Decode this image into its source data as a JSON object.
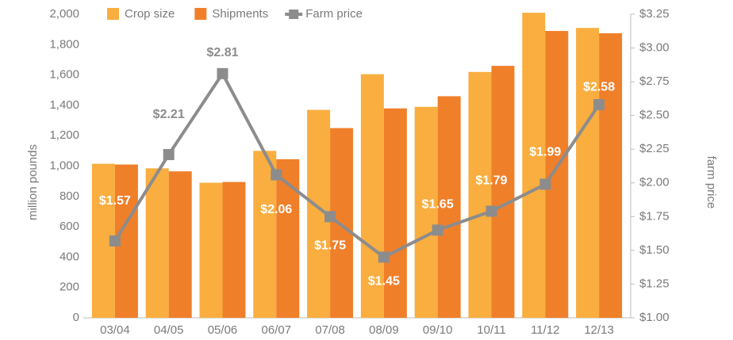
{
  "chart_data": {
    "type": "bar",
    "y_label": "million pounds",
    "y2_label": "farm price",
    "categories": [
      "03/04",
      "04/05",
      "05/06",
      "06/07",
      "07/08",
      "08/09",
      "09/10",
      "10/11",
      "11/12",
      "12/13"
    ],
    "series": [
      {
        "name": "Crop size",
        "color": "#f9ae3f",
        "values": [
          1015,
          985,
          890,
          1100,
          1370,
          1605,
          1390,
          1620,
          2010,
          1910
        ]
      },
      {
        "name": "Shipments",
        "color": "#f07f2a",
        "values": [
          1010,
          965,
          895,
          1045,
          1250,
          1380,
          1460,
          1660,
          1890,
          1875
        ]
      },
      {
        "name": "Farm price",
        "type": "line",
        "axis": "y2",
        "color": "#8c8c8c",
        "values": [
          1.57,
          2.21,
          2.81,
          2.06,
          1.75,
          1.45,
          1.65,
          1.79,
          1.99,
          2.58
        ],
        "value_labels": [
          "$1.57",
          "$2.21",
          "$2.81",
          "$2.06",
          "$1.75",
          "$1.45",
          "$1.65",
          "$1.79",
          "$1.99",
          "$2.58"
        ]
      }
    ],
    "ylim": [
      0,
      2000
    ],
    "yticks": [
      0,
      200,
      400,
      600,
      800,
      {
        "value": 1000,
        "label": "1,000"
      },
      {
        "value": 1200,
        "label": "1,200"
      },
      {
        "value": 1400,
        "label": "1,400"
      },
      {
        "value": 1600,
        "label": "1,600"
      },
      {
        "value": 1800,
        "label": "1,800"
      },
      {
        "value": 2000,
        "label": "2,000"
      }
    ],
    "y2lim": [
      1.0,
      3.25
    ],
    "y2ticks": [
      {
        "value": 1.0,
        "label": "$1.00"
      },
      {
        "value": 1.25,
        "label": "$1.25"
      },
      {
        "value": 1.5,
        "label": "$1.50"
      },
      {
        "value": 1.75,
        "label": "$1.75"
      },
      {
        "value": 2.0,
        "label": "$2.00"
      },
      {
        "value": 2.25,
        "label": "$2.25"
      },
      {
        "value": 2.5,
        "label": "$2.50"
      },
      {
        "value": 2.75,
        "label": "$2.75"
      },
      {
        "value": 3.0,
        "label": "$3.00"
      },
      {
        "value": 3.25,
        "label": "$3.25"
      }
    ],
    "legend": "top"
  }
}
